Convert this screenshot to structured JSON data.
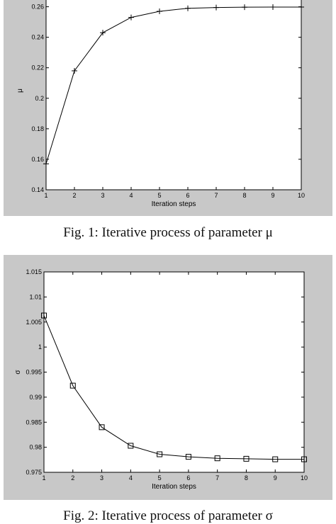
{
  "charts": [
    {
      "caption": "Fig. 1: Iterative process of parameter μ",
      "chart_data": {
        "type": "line",
        "marker": "plus",
        "xlabel": "Iteration steps",
        "ylabel": "μ",
        "xlim": [
          1,
          10
        ],
        "ylim": [
          0.14,
          0.27
        ],
        "xticks": [
          "1",
          "2",
          "3",
          "4",
          "5",
          "6",
          "7",
          "8",
          "9",
          "10"
        ],
        "yticks": [
          "0.14",
          "0.16",
          "0.18",
          "0.2",
          "0.22",
          "0.24",
          "0.26"
        ],
        "x": [
          1,
          2,
          3,
          4,
          5,
          6,
          7,
          8,
          9,
          10
        ],
        "y": [
          0.157,
          0.218,
          0.243,
          0.253,
          0.257,
          0.259,
          0.2595,
          0.2597,
          0.2598,
          0.2598
        ]
      }
    },
    {
      "caption": "Fig. 2: Iterative process of parameter σ",
      "chart_data": {
        "type": "line",
        "marker": "square",
        "xlabel": "Iteration steps",
        "ylabel": "σ",
        "xlim": [
          1,
          10
        ],
        "ylim": [
          0.975,
          1.015
        ],
        "xticks": [
          "1",
          "2",
          "3",
          "4",
          "5",
          "6",
          "7",
          "8",
          "9",
          "10"
        ],
        "yticks": [
          "0.975",
          "0.98",
          "0.985",
          "0.99",
          "0.995",
          "1",
          "1.005",
          "1.01",
          "1.015"
        ],
        "x": [
          1,
          2,
          3,
          4,
          5,
          6,
          7,
          8,
          9,
          10
        ],
        "y": [
          1.0063,
          0.9923,
          0.984,
          0.9803,
          0.9786,
          0.9781,
          0.9778,
          0.9777,
          0.9776,
          0.9776
        ]
      }
    }
  ]
}
